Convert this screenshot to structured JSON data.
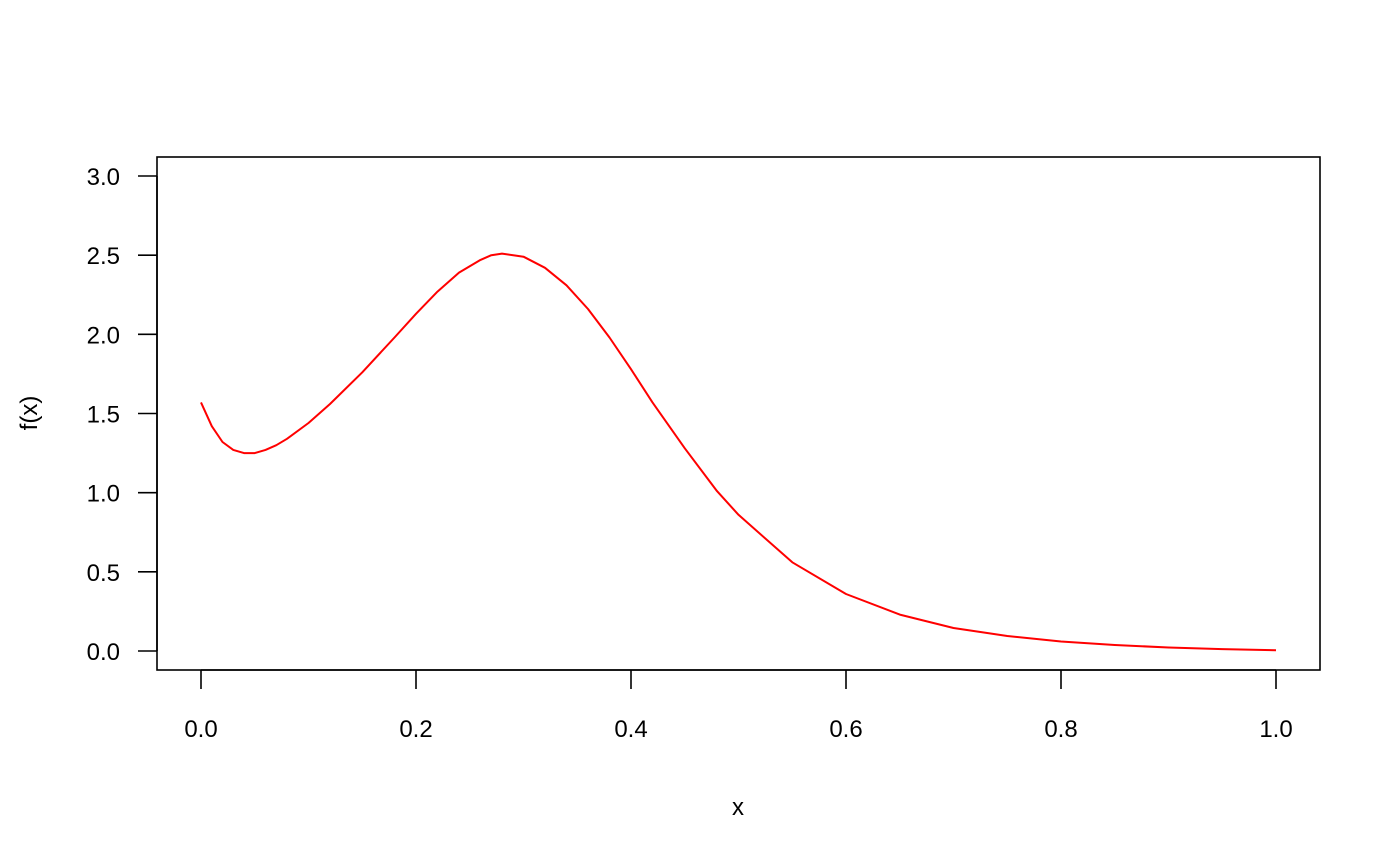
{
  "chart_data": {
    "type": "line",
    "title": "",
    "xlabel": "x",
    "ylabel": "f(x)",
    "xlim": [
      0.0,
      1.0
    ],
    "ylim": [
      0.0,
      3.0
    ],
    "grid": false,
    "x_ticks": [
      "0.0",
      "0.2",
      "0.4",
      "0.6",
      "0.8",
      "1.0"
    ],
    "y_ticks": [
      "0.0",
      "0.5",
      "1.0",
      "1.5",
      "2.0",
      "2.5",
      "3.0"
    ],
    "series": [
      {
        "color": "#ff0000",
        "x": [
          0.0,
          0.01,
          0.02,
          0.03,
          0.04,
          0.05,
          0.06,
          0.07,
          0.08,
          0.1,
          0.12,
          0.15,
          0.18,
          0.2,
          0.22,
          0.24,
          0.26,
          0.27,
          0.28,
          0.3,
          0.32,
          0.34,
          0.36,
          0.38,
          0.4,
          0.42,
          0.45,
          0.48,
          0.5,
          0.55,
          0.6,
          0.65,
          0.7,
          0.75,
          0.8,
          0.85,
          0.9,
          0.95,
          1.0
        ],
        "values": [
          1.57,
          1.42,
          1.32,
          1.27,
          1.25,
          1.25,
          1.27,
          1.3,
          1.34,
          1.44,
          1.56,
          1.76,
          1.98,
          2.13,
          2.27,
          2.39,
          2.47,
          2.5,
          2.51,
          2.49,
          2.42,
          2.31,
          2.16,
          1.98,
          1.78,
          1.57,
          1.28,
          1.01,
          0.86,
          0.56,
          0.36,
          0.23,
          0.145,
          0.095,
          0.06,
          0.038,
          0.022,
          0.012,
          0.005
        ]
      }
    ]
  }
}
